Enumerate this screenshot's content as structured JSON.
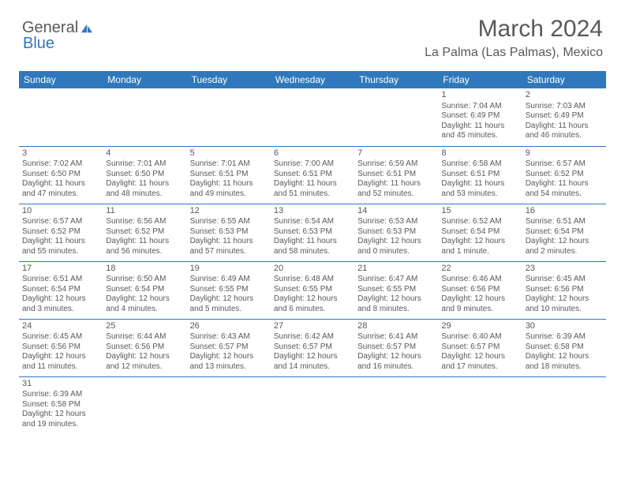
{
  "logo": {
    "part1": "General",
    "part2": "Blue"
  },
  "title": "March 2024",
  "location": "La Palma (Las Palmas), Mexico",
  "colors": {
    "header_bg": "#2f78bb",
    "header_text": "#ffffff",
    "body_text": "#58595b",
    "border": "#2f78bb",
    "page_bg": "#ffffff",
    "logo_gray": "#58595b",
    "logo_blue": "#2f78bb"
  },
  "daynames": [
    "Sunday",
    "Monday",
    "Tuesday",
    "Wednesday",
    "Thursday",
    "Friday",
    "Saturday"
  ],
  "weeks": [
    [
      null,
      null,
      null,
      null,
      null,
      {
        "n": "1",
        "sr": "Sunrise: 7:04 AM",
        "ss": "Sunset: 6:49 PM",
        "dl": "Daylight: 11 hours and 45 minutes."
      },
      {
        "n": "2",
        "sr": "Sunrise: 7:03 AM",
        "ss": "Sunset: 6:49 PM",
        "dl": "Daylight: 11 hours and 46 minutes."
      }
    ],
    [
      {
        "n": "3",
        "sr": "Sunrise: 7:02 AM",
        "ss": "Sunset: 6:50 PM",
        "dl": "Daylight: 11 hours and 47 minutes."
      },
      {
        "n": "4",
        "sr": "Sunrise: 7:01 AM",
        "ss": "Sunset: 6:50 PM",
        "dl": "Daylight: 11 hours and 48 minutes."
      },
      {
        "n": "5",
        "sr": "Sunrise: 7:01 AM",
        "ss": "Sunset: 6:51 PM",
        "dl": "Daylight: 11 hours and 49 minutes."
      },
      {
        "n": "6",
        "sr": "Sunrise: 7:00 AM",
        "ss": "Sunset: 6:51 PM",
        "dl": "Daylight: 11 hours and 51 minutes."
      },
      {
        "n": "7",
        "sr": "Sunrise: 6:59 AM",
        "ss": "Sunset: 6:51 PM",
        "dl": "Daylight: 11 hours and 52 minutes."
      },
      {
        "n": "8",
        "sr": "Sunrise: 6:58 AM",
        "ss": "Sunset: 6:51 PM",
        "dl": "Daylight: 11 hours and 53 minutes."
      },
      {
        "n": "9",
        "sr": "Sunrise: 6:57 AM",
        "ss": "Sunset: 6:52 PM",
        "dl": "Daylight: 11 hours and 54 minutes."
      }
    ],
    [
      {
        "n": "10",
        "sr": "Sunrise: 6:57 AM",
        "ss": "Sunset: 6:52 PM",
        "dl": "Daylight: 11 hours and 55 minutes."
      },
      {
        "n": "11",
        "sr": "Sunrise: 6:56 AM",
        "ss": "Sunset: 6:52 PM",
        "dl": "Daylight: 11 hours and 56 minutes."
      },
      {
        "n": "12",
        "sr": "Sunrise: 6:55 AM",
        "ss": "Sunset: 6:53 PM",
        "dl": "Daylight: 11 hours and 57 minutes."
      },
      {
        "n": "13",
        "sr": "Sunrise: 6:54 AM",
        "ss": "Sunset: 6:53 PM",
        "dl": "Daylight: 11 hours and 58 minutes."
      },
      {
        "n": "14",
        "sr": "Sunrise: 6:53 AM",
        "ss": "Sunset: 6:53 PM",
        "dl": "Daylight: 12 hours and 0 minutes."
      },
      {
        "n": "15",
        "sr": "Sunrise: 6:52 AM",
        "ss": "Sunset: 6:54 PM",
        "dl": "Daylight: 12 hours and 1 minute."
      },
      {
        "n": "16",
        "sr": "Sunrise: 6:51 AM",
        "ss": "Sunset: 6:54 PM",
        "dl": "Daylight: 12 hours and 2 minutes."
      }
    ],
    [
      {
        "n": "17",
        "sr": "Sunrise: 6:51 AM",
        "ss": "Sunset: 6:54 PM",
        "dl": "Daylight: 12 hours and 3 minutes."
      },
      {
        "n": "18",
        "sr": "Sunrise: 6:50 AM",
        "ss": "Sunset: 6:54 PM",
        "dl": "Daylight: 12 hours and 4 minutes."
      },
      {
        "n": "19",
        "sr": "Sunrise: 6:49 AM",
        "ss": "Sunset: 6:55 PM",
        "dl": "Daylight: 12 hours and 5 minutes."
      },
      {
        "n": "20",
        "sr": "Sunrise: 6:48 AM",
        "ss": "Sunset: 6:55 PM",
        "dl": "Daylight: 12 hours and 6 minutes."
      },
      {
        "n": "21",
        "sr": "Sunrise: 6:47 AM",
        "ss": "Sunset: 6:55 PM",
        "dl": "Daylight: 12 hours and 8 minutes."
      },
      {
        "n": "22",
        "sr": "Sunrise: 6:46 AM",
        "ss": "Sunset: 6:56 PM",
        "dl": "Daylight: 12 hours and 9 minutes."
      },
      {
        "n": "23",
        "sr": "Sunrise: 6:45 AM",
        "ss": "Sunset: 6:56 PM",
        "dl": "Daylight: 12 hours and 10 minutes."
      }
    ],
    [
      {
        "n": "24",
        "sr": "Sunrise: 6:45 AM",
        "ss": "Sunset: 6:56 PM",
        "dl": "Daylight: 12 hours and 11 minutes."
      },
      {
        "n": "25",
        "sr": "Sunrise: 6:44 AM",
        "ss": "Sunset: 6:56 PM",
        "dl": "Daylight: 12 hours and 12 minutes."
      },
      {
        "n": "26",
        "sr": "Sunrise: 6:43 AM",
        "ss": "Sunset: 6:57 PM",
        "dl": "Daylight: 12 hours and 13 minutes."
      },
      {
        "n": "27",
        "sr": "Sunrise: 6:42 AM",
        "ss": "Sunset: 6:57 PM",
        "dl": "Daylight: 12 hours and 14 minutes."
      },
      {
        "n": "28",
        "sr": "Sunrise: 6:41 AM",
        "ss": "Sunset: 6:57 PM",
        "dl": "Daylight: 12 hours and 16 minutes."
      },
      {
        "n": "29",
        "sr": "Sunrise: 6:40 AM",
        "ss": "Sunset: 6:57 PM",
        "dl": "Daylight: 12 hours and 17 minutes."
      },
      {
        "n": "30",
        "sr": "Sunrise: 6:39 AM",
        "ss": "Sunset: 6:58 PM",
        "dl": "Daylight: 12 hours and 18 minutes."
      }
    ],
    [
      {
        "n": "31",
        "sr": "Sunrise: 6:39 AM",
        "ss": "Sunset: 6:58 PM",
        "dl": "Daylight: 12 hours and 19 minutes."
      },
      null,
      null,
      null,
      null,
      null,
      null
    ]
  ]
}
